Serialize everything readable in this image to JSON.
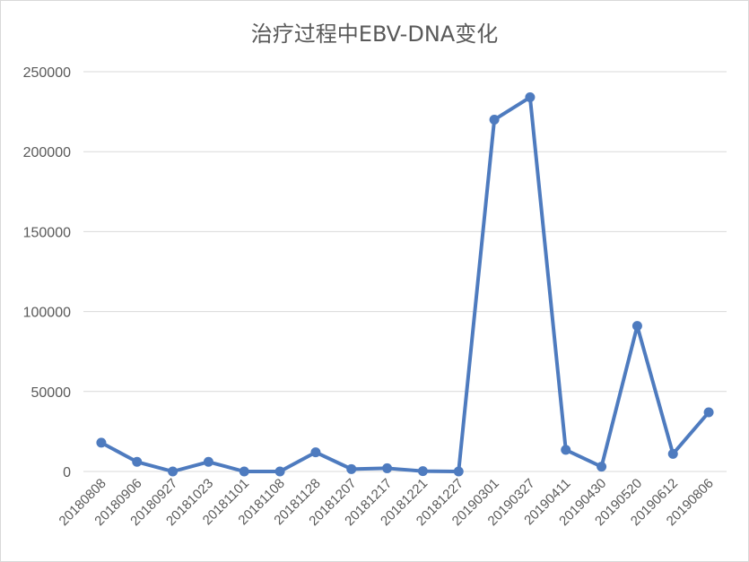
{
  "chart_data": {
    "type": "line",
    "title": "治疗过程中EBV-DNA变化",
    "xlabel": "",
    "ylabel": "",
    "categories": [
      "20180808",
      "20180906",
      "20180927",
      "20181023",
      "20181101",
      "20181108",
      "20181128",
      "20181207",
      "20181217",
      "20181221",
      "20181227",
      "20190301",
      "20190327",
      "20190411",
      "20190430",
      "20190520",
      "20190612",
      "20190806"
    ],
    "series": [
      {
        "values": [
          18000,
          6000,
          0,
          6000,
          0,
          0,
          12000,
          1500,
          2000,
          200,
          0,
          220000,
          234000,
          13500,
          3000,
          91000,
          11000,
          37000
        ]
      }
    ],
    "ylim": [
      0,
      250000
    ],
    "yticks": [
      "0",
      "50000",
      "100000",
      "150000",
      "200000",
      "250000"
    ],
    "grid": true,
    "legend": "none",
    "line_color": "#4e7bbf",
    "grid_color": "#d9d9d9"
  }
}
